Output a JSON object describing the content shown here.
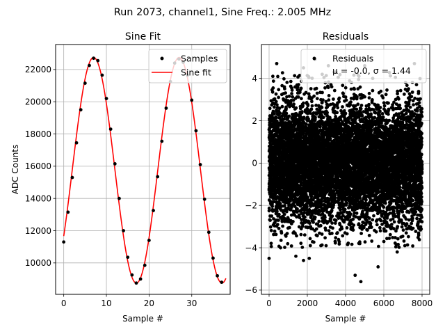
{
  "suptitle": "Run 2073, channel1, Sine Freq.: 2.005 MHz",
  "chart_data": [
    {
      "type": "line",
      "title": "Sine Fit",
      "xlabel": "Sample #",
      "ylabel": "ADC Counts",
      "xlim": [
        -1.9,
        39.0
      ],
      "ylim": [
        8050,
        23550
      ],
      "xticks": [
        0,
        10,
        20,
        30
      ],
      "yticks": [
        10000,
        12000,
        14000,
        16000,
        18000,
        20000,
        22000
      ],
      "grid": true,
      "legend_position": "top-right",
      "series": [
        {
          "name": "Samples",
          "style": "markers",
          "color": "#000000",
          "x": [
            0,
            1,
            2,
            3,
            4,
            5,
            6,
            7,
            8,
            9,
            10,
            11,
            12,
            13,
            14,
            15,
            16,
            17,
            18,
            19,
            20,
            21,
            22,
            23,
            24,
            25,
            26,
            27,
            28,
            29,
            30,
            31,
            32,
            33,
            34,
            35,
            36,
            37
          ],
          "y": [
            11300,
            13150,
            15300,
            17450,
            19500,
            21150,
            22250,
            22700,
            22550,
            21650,
            20200,
            18300,
            16150,
            14000,
            12000,
            10350,
            9250,
            8750,
            9000,
            9850,
            11400,
            13250,
            15350,
            17550,
            19600,
            21250,
            22400,
            22650,
            22450,
            21650,
            20100,
            18200,
            16100,
            13950,
            11900,
            10300,
            9200,
            8800
          ]
        },
        {
          "name": "Sine fit",
          "style": "line",
          "color": "#ff0000",
          "amplitude": 7000,
          "offset": 15750,
          "period": 20.05,
          "peak_x": 7.0,
          "x_range": [
            0,
            38
          ]
        }
      ]
    },
    {
      "type": "scatter",
      "title": "Residuals",
      "xlabel": "Sample #",
      "ylabel": "",
      "xlim": [
        -400,
        8400
      ],
      "ylim": [
        -6.2,
        5.6
      ],
      "xticks": [
        0,
        2000,
        4000,
        6000,
        8000
      ],
      "yticks": [
        -6,
        -4,
        -2,
        0,
        2,
        4
      ],
      "grid": true,
      "legend_position": "top-right",
      "color": "#000000",
      "series": [
        {
          "name": "Residuals",
          "legend_stats": "μ = -0.0, σ = 1.44",
          "mean": 0.0,
          "std": 1.44,
          "n_points": 8000,
          "x_range": [
            0,
            8000
          ],
          "outliers": [
            {
              "x": 0,
              "y": -4.5
            },
            {
              "x": 2400,
              "y": 4.9
            },
            {
              "x": 4800,
              "y": -5.6
            },
            {
              "x": 4500,
              "y": -5.3
            },
            {
              "x": 7100,
              "y": -3.9
            },
            {
              "x": 7600,
              "y": 4.7
            },
            {
              "x": 4700,
              "y": 4.1
            },
            {
              "x": 2100,
              "y": -4.5
            },
            {
              "x": 1400,
              "y": -4.4
            },
            {
              "x": 6700,
              "y": -4.2
            },
            {
              "x": 5000,
              "y": 4.6
            },
            {
              "x": 3500,
              "y": 4.3
            },
            {
              "x": 3100,
              "y": 4.6
            },
            {
              "x": 1800,
              "y": 4.5
            },
            {
              "x": 400,
              "y": 4.7
            },
            {
              "x": 800,
              "y": 3.6
            },
            {
              "x": 600,
              "y": -4.0
            },
            {
              "x": 1800,
              "y": -4.6
            },
            {
              "x": 5700,
              "y": -4.9
            },
            {
              "x": 3400,
              "y": 4.3
            }
          ]
        }
      ]
    }
  ]
}
